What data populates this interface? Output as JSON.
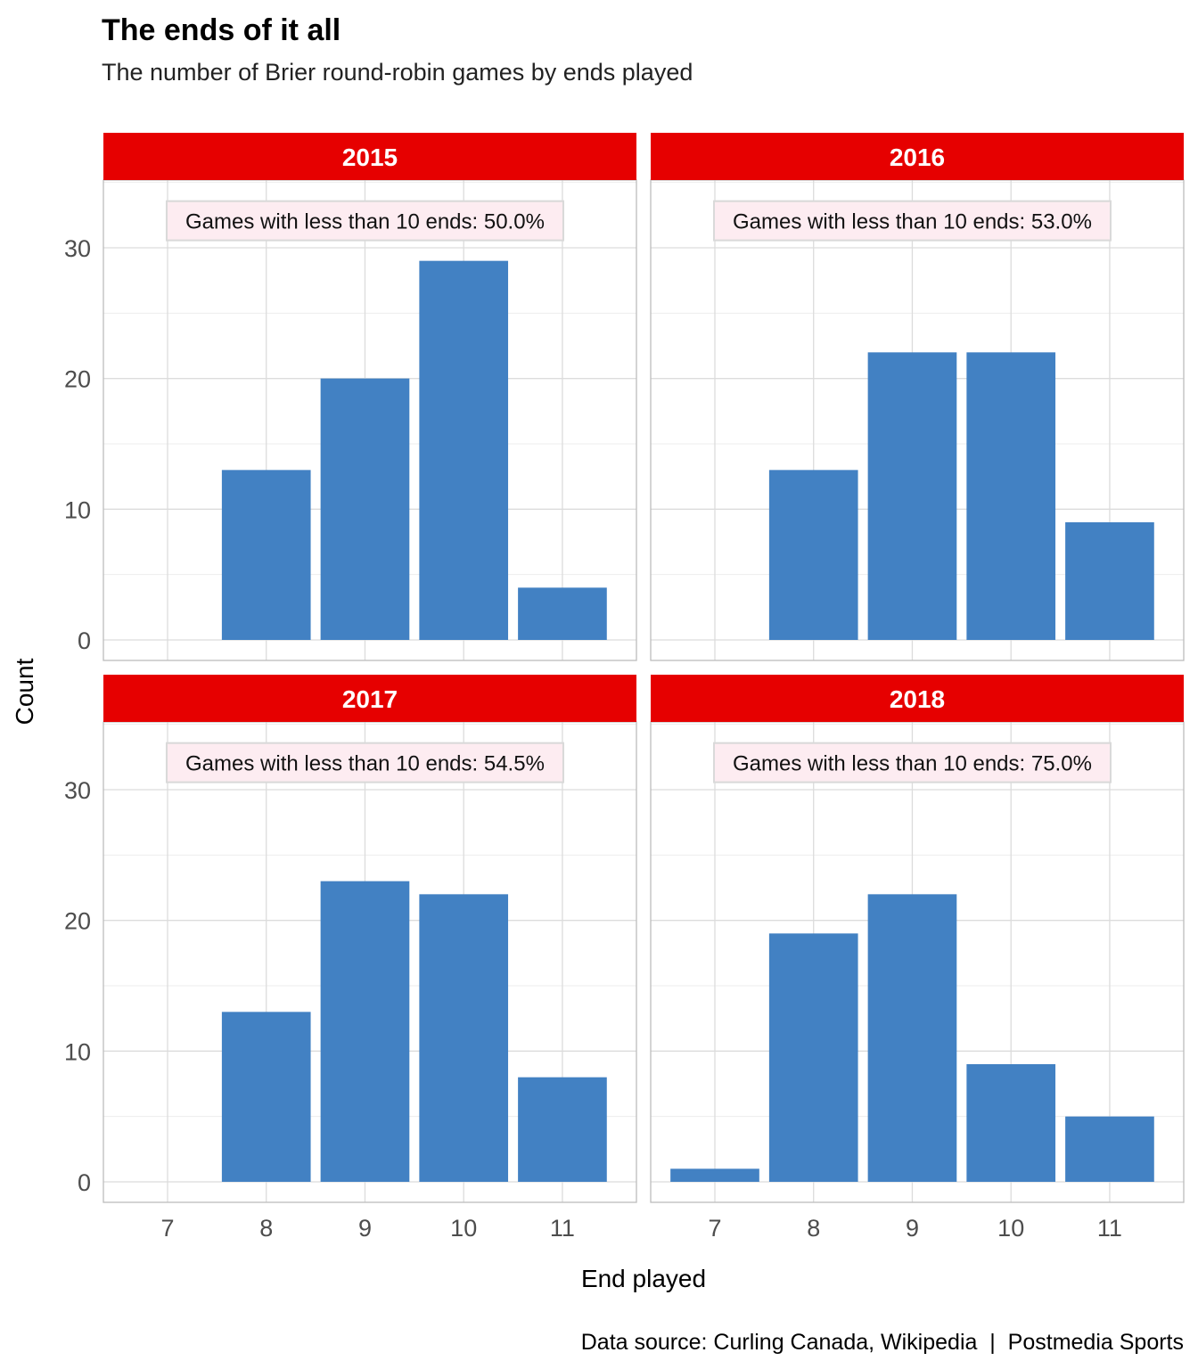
{
  "chart_data": {
    "type": "bar",
    "title": "The ends of it all",
    "subtitle": "The number of Brier round-robin games by ends played",
    "xlabel": "End played",
    "ylabel": "Count",
    "caption": "Data source: Curling Canada, Wikipedia  |  Postmedia Sports",
    "x_ticks": [
      7,
      8,
      9,
      10,
      11
    ],
    "y_ticks": [
      0,
      10,
      20,
      30
    ],
    "ylim": [
      0,
      35
    ],
    "xlim": [
      6.35,
      11.75
    ],
    "grid": true,
    "colors": {
      "bar": "#4281C3",
      "strip": "#E60000",
      "strip_text": "#ffffff",
      "label_fill": "#FDECF1",
      "label_border": "#D9D9D9",
      "grid_major": "#DCDCDC",
      "grid_minor": "#EDEDED",
      "panel_border": "#BDBDBD"
    },
    "panels": [
      {
        "year": "2015",
        "annotation": "Games with less than 10 ends: 50.0%",
        "x": [
          8,
          9,
          10,
          11
        ],
        "values": [
          13,
          20,
          29,
          4
        ]
      },
      {
        "year": "2016",
        "annotation": "Games with less than 10 ends: 53.0%",
        "x": [
          8,
          9,
          10,
          11
        ],
        "values": [
          13,
          22,
          22,
          9
        ]
      },
      {
        "year": "2017",
        "annotation": "Games with less than 10 ends: 54.5%",
        "x": [
          8,
          9,
          10,
          11
        ],
        "values": [
          13,
          23,
          22,
          8
        ]
      },
      {
        "year": "2018",
        "annotation": "Games with less than 10 ends: 75.0%",
        "x": [
          7,
          8,
          9,
          10,
          11
        ],
        "values": [
          1,
          19,
          22,
          9,
          5
        ]
      }
    ]
  }
}
